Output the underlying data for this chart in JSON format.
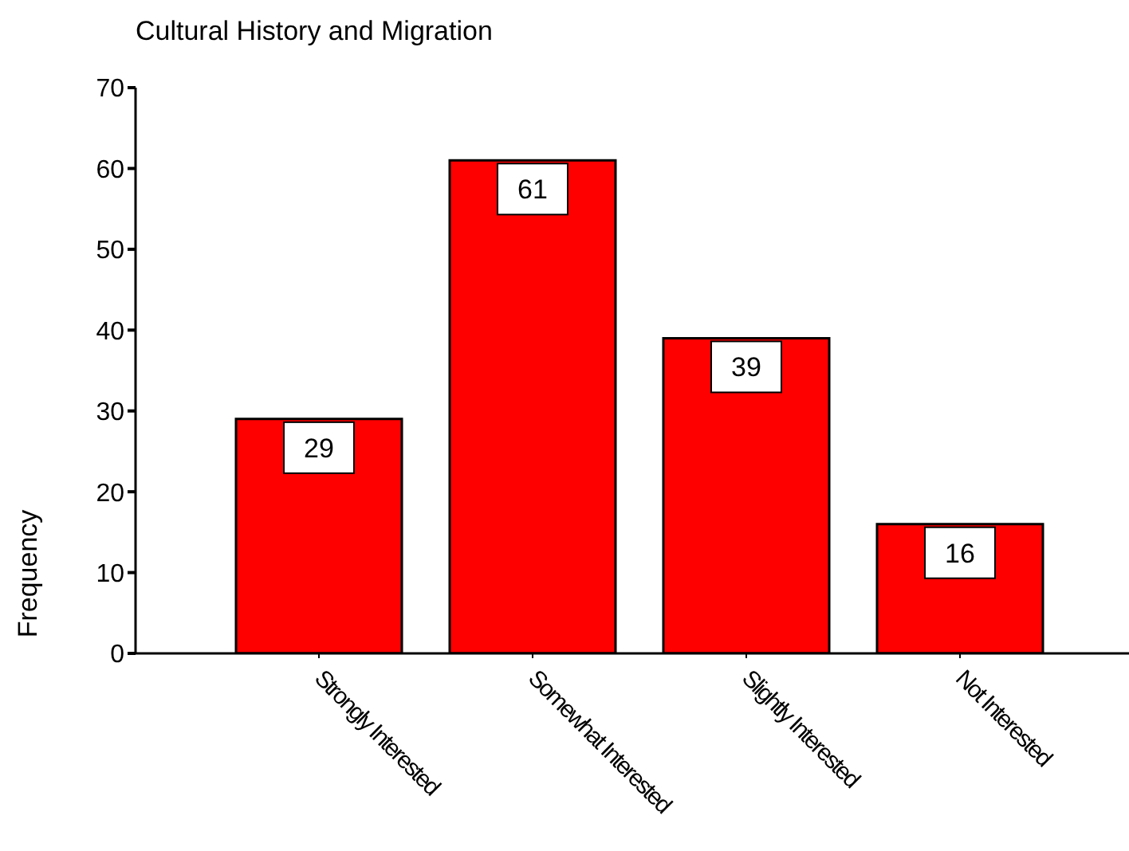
{
  "chart_data": {
    "type": "bar",
    "title": "Cultural History and Migration",
    "ylabel": "Frequency",
    "categories": [
      "Strongly Interested",
      "Somewhat Interested",
      "Slightly Interested",
      "Not Interested"
    ],
    "values": [
      29,
      61,
      39,
      16
    ],
    "color": "#ff0000",
    "ylim": [
      0,
      70
    ],
    "yticks": [
      0,
      10,
      20,
      30,
      40,
      50,
      60,
      70
    ],
    "data_labels": true
  }
}
